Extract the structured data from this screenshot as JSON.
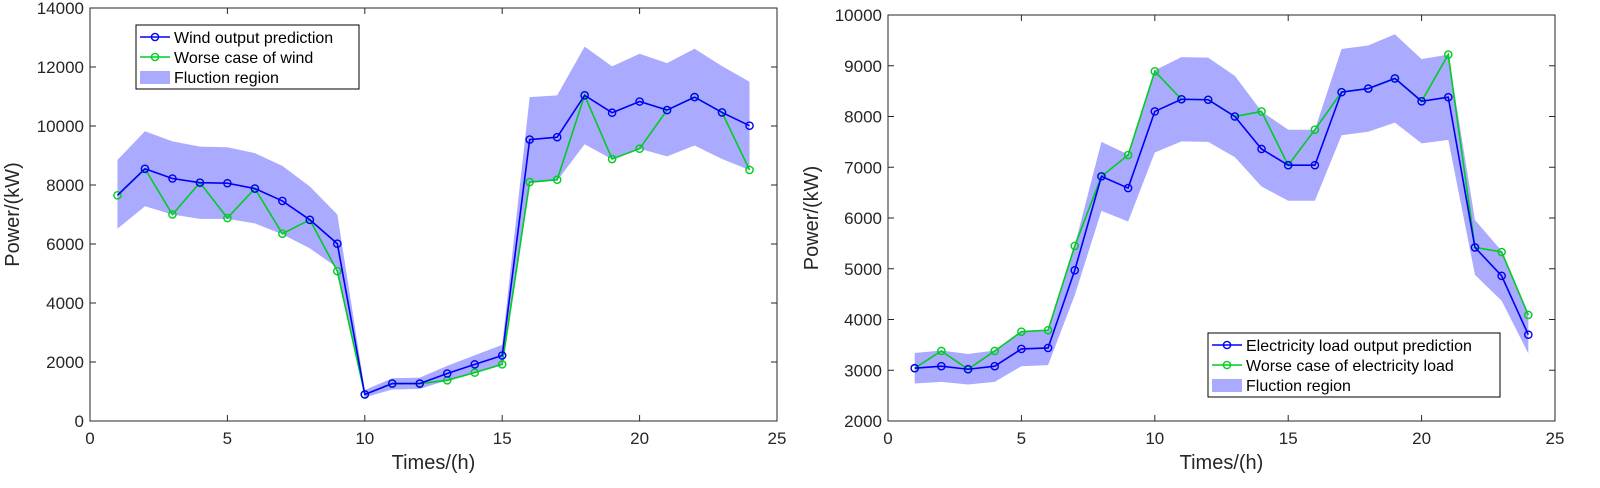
{
  "colors": {
    "prediction": "#0000f5",
    "worse": "#00cc22",
    "region": "#aaaaff",
    "axis": "#262626",
    "legend_border": "#000000"
  },
  "chart_data": [
    {
      "type": "line",
      "xlabel": "Times/(h)",
      "ylabel": "Power/(kW)",
      "xlim": [
        0,
        25
      ],
      "ylim": [
        0,
        14000
      ],
      "x_ticks": [
        0,
        5,
        10,
        15,
        20,
        25
      ],
      "y_ticks": [
        0,
        2000,
        4000,
        6000,
        8000,
        10000,
        12000,
        14000
      ],
      "grid": false,
      "legend_position": "top-left",
      "legend": [
        "Wind output prediction",
        "Worse case of wind",
        "Fluction region"
      ],
      "x": [
        1,
        2,
        3,
        4,
        5,
        6,
        7,
        8,
        9,
        10,
        11,
        12,
        13,
        14,
        15,
        16,
        17,
        18,
        19,
        20,
        21,
        22,
        23,
        24
      ],
      "series": [
        {
          "name": "Wind output prediction",
          "marker_from": 2,
          "values": [
            7650,
            8550,
            8220,
            8080,
            8060,
            7880,
            7460,
            6820,
            6010,
            900,
            1270,
            1270,
            1610,
            1920,
            2220,
            9540,
            9620,
            11040,
            10450,
            10830,
            10540,
            10980,
            10460,
            10010
          ]
        },
        {
          "name": "Worse case of wind",
          "values": [
            7650,
            8550,
            7000,
            8080,
            6880,
            7880,
            6350,
            6820,
            5080,
            900,
            1270,
            1270,
            1380,
            1640,
            1920,
            8100,
            8180,
            11040,
            8880,
            9230,
            10540,
            10980,
            10460,
            8510
          ]
        }
      ],
      "band": {
        "name": "Fluction region",
        "upper": [
          8850,
          9820,
          9480,
          9300,
          9280,
          9080,
          8650,
          7950,
          7000,
          1050,
          1450,
          1470,
          1870,
          2230,
          2580,
          10980,
          11040,
          12690,
          12020,
          12450,
          12130,
          12620,
          12030,
          11500
        ],
        "lower": [
          6520,
          7280,
          7000,
          6850,
          6850,
          6700,
          6330,
          5850,
          5200,
          800,
          1070,
          1090,
          1380,
          1640,
          1920,
          8070,
          8150,
          9380,
          8870,
          9230,
          8970,
          9340,
          8880,
          8510
        ]
      }
    },
    {
      "type": "line",
      "xlabel": "Times/(h)",
      "ylabel": "Power/(kW)",
      "xlim": [
        0,
        25
      ],
      "ylim": [
        2000,
        10000
      ],
      "x_ticks": [
        0,
        5,
        10,
        15,
        20,
        25
      ],
      "y_ticks": [
        2000,
        3000,
        4000,
        5000,
        6000,
        7000,
        8000,
        9000,
        10000
      ],
      "grid": false,
      "legend_position": "bottom-right",
      "legend": [
        "Electricity load output prediction",
        "Worse case of electricity load",
        "Fluction region"
      ],
      "x": [
        1,
        2,
        3,
        4,
        5,
        6,
        7,
        8,
        9,
        10,
        11,
        12,
        13,
        14,
        15,
        16,
        17,
        18,
        19,
        20,
        21,
        22,
        23,
        24
      ],
      "series": [
        {
          "name": "Electricity load output prediction",
          "values": [
            3040,
            3080,
            3020,
            3080,
            3420,
            3440,
            4970,
            6820,
            6590,
            8100,
            8340,
            8330,
            8000,
            7360,
            7040,
            7040,
            8480,
            8550,
            8750,
            8300,
            8380,
            5420,
            4860,
            3700
          ]
        },
        {
          "name": "Worse case of electricity load",
          "values": [
            3040,
            3380,
            3020,
            3380,
            3760,
            3790,
            5450,
            6820,
            7240,
            8890,
            8340,
            8330,
            8000,
            8100,
            7040,
            7740,
            8480,
            8550,
            8750,
            8300,
            9220,
            5420,
            5330,
            4090
          ]
        }
      ],
      "band": {
        "name": "Fluction region",
        "upper": [
          3340,
          3390,
          3320,
          3390,
          3760,
          3790,
          5460,
          7500,
          7250,
          8910,
          9170,
          9160,
          8800,
          8100,
          7740,
          7740,
          9330,
          9400,
          9620,
          9130,
          9220,
          5960,
          5350,
          4090
        ],
        "lower": [
          2740,
          2770,
          2720,
          2770,
          3080,
          3100,
          4480,
          6140,
          5930,
          7290,
          7510,
          7500,
          7200,
          6620,
          6340,
          6340,
          7630,
          7700,
          7880,
          7470,
          7540,
          4880,
          4370,
          3330
        ]
      }
    }
  ]
}
